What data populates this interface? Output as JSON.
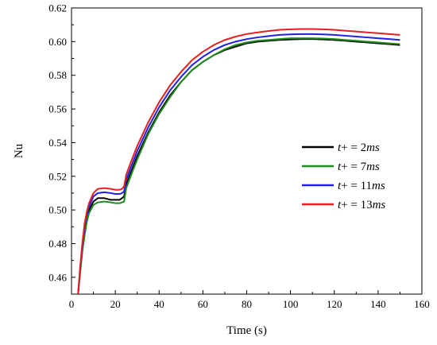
{
  "chart_data": {
    "type": "line",
    "xlabel": "Time (s)",
    "ylabel": "Nu",
    "xlim": [
      0,
      160
    ],
    "ylim": [
      0.45,
      0.62
    ],
    "xticks": [
      "0",
      "20",
      "40",
      "60",
      "80",
      "100",
      "120",
      "140",
      "160"
    ],
    "yticks": [
      "0.46",
      "0.48",
      "0.50",
      "0.52",
      "0.54",
      "0.56",
      "0.58",
      "0.60",
      "0.62"
    ],
    "legend_position": "center-right",
    "series": [
      {
        "name": "t+ = 2ms",
        "legend": {
          "var": "t",
          "mid": "+ = 2",
          "unit": "ms"
        },
        "color": "#000000",
        "x": [
          3,
          4,
          5,
          6,
          7,
          8,
          10,
          12,
          15,
          18,
          20,
          22,
          23,
          24,
          25,
          27,
          30,
          35,
          40,
          45,
          50,
          55,
          60,
          65,
          70,
          75,
          80,
          85,
          90,
          95,
          100,
          105,
          110,
          115,
          120,
          125,
          130,
          135,
          140,
          145,
          150
        ],
        "y": [
          0.45,
          0.465,
          0.478,
          0.488,
          0.495,
          0.5,
          0.505,
          0.507,
          0.507,
          0.506,
          0.506,
          0.506,
          0.507,
          0.508,
          0.515,
          0.522,
          0.532,
          0.546,
          0.558,
          0.568,
          0.576,
          0.583,
          0.588,
          0.592,
          0.595,
          0.597,
          0.599,
          0.6,
          0.6005,
          0.601,
          0.6013,
          0.6015,
          0.6015,
          0.6013,
          0.601,
          0.6005,
          0.6,
          0.5995,
          0.599,
          0.5985,
          0.598
        ]
      },
      {
        "name": "t+ = 7ms",
        "legend": {
          "var": "t",
          "mid": "+ = 7",
          "unit": "ms"
        },
        "color": "#1e8c1e",
        "x": [
          3,
          4,
          5,
          6,
          7,
          8,
          10,
          12,
          15,
          18,
          20,
          22,
          23,
          24,
          25,
          27,
          30,
          35,
          40,
          45,
          50,
          55,
          60,
          65,
          70,
          75,
          80,
          85,
          90,
          95,
          100,
          105,
          110,
          115,
          120,
          125,
          130,
          135,
          140,
          145,
          150
        ],
        "y": [
          0.45,
          0.463,
          0.476,
          0.485,
          0.493,
          0.498,
          0.503,
          0.5045,
          0.505,
          0.5045,
          0.504,
          0.504,
          0.5045,
          0.505,
          0.513,
          0.52,
          0.53,
          0.545,
          0.557,
          0.567,
          0.576,
          0.583,
          0.588,
          0.592,
          0.5955,
          0.598,
          0.5995,
          0.6005,
          0.601,
          0.6015,
          0.602,
          0.602,
          0.602,
          0.6018,
          0.6015,
          0.601,
          0.6005,
          0.6,
          0.5995,
          0.599,
          0.5985
        ]
      },
      {
        "name": "t+ = 11ms",
        "legend": {
          "var": "t",
          "mid": "+ = 11",
          "unit": "ms"
        },
        "color": "#1f1fe6",
        "x": [
          3,
          4,
          5,
          6,
          7,
          8,
          10,
          12,
          15,
          18,
          20,
          22,
          23,
          24,
          25,
          27,
          30,
          35,
          40,
          45,
          50,
          55,
          60,
          65,
          70,
          75,
          80,
          85,
          90,
          95,
          100,
          105,
          110,
          115,
          120,
          125,
          130,
          135,
          140,
          145,
          150
        ],
        "y": [
          0.45,
          0.466,
          0.479,
          0.49,
          0.497,
          0.502,
          0.508,
          0.51,
          0.5105,
          0.51,
          0.5095,
          0.5095,
          0.51,
          0.511,
          0.518,
          0.525,
          0.535,
          0.549,
          0.561,
          0.571,
          0.579,
          0.586,
          0.591,
          0.595,
          0.598,
          0.6,
          0.6015,
          0.6025,
          0.6033,
          0.604,
          0.6043,
          0.6045,
          0.6045,
          0.6043,
          0.604,
          0.6035,
          0.603,
          0.6025,
          0.602,
          0.6015,
          0.601
        ]
      },
      {
        "name": "t+ = 13ms",
        "legend": {
          "var": "t",
          "mid": "+ = 13",
          "unit": "ms"
        },
        "color": "#e61f1f",
        "x": [
          3,
          4,
          5,
          6,
          7,
          8,
          10,
          12,
          15,
          18,
          20,
          22,
          23,
          24,
          25,
          27,
          30,
          35,
          40,
          45,
          50,
          55,
          60,
          65,
          70,
          75,
          80,
          85,
          90,
          95,
          100,
          105,
          110,
          115,
          120,
          125,
          130,
          135,
          140,
          145,
          150
        ],
        "y": [
          0.45,
          0.467,
          0.481,
          0.492,
          0.499,
          0.504,
          0.51,
          0.5125,
          0.513,
          0.5125,
          0.512,
          0.512,
          0.5125,
          0.514,
          0.521,
          0.528,
          0.538,
          0.552,
          0.564,
          0.574,
          0.582,
          0.589,
          0.594,
          0.598,
          0.601,
          0.603,
          0.6045,
          0.6055,
          0.6063,
          0.607,
          0.6073,
          0.6075,
          0.6075,
          0.6073,
          0.607,
          0.6065,
          0.606,
          0.6055,
          0.605,
          0.6045,
          0.604
        ]
      }
    ]
  }
}
